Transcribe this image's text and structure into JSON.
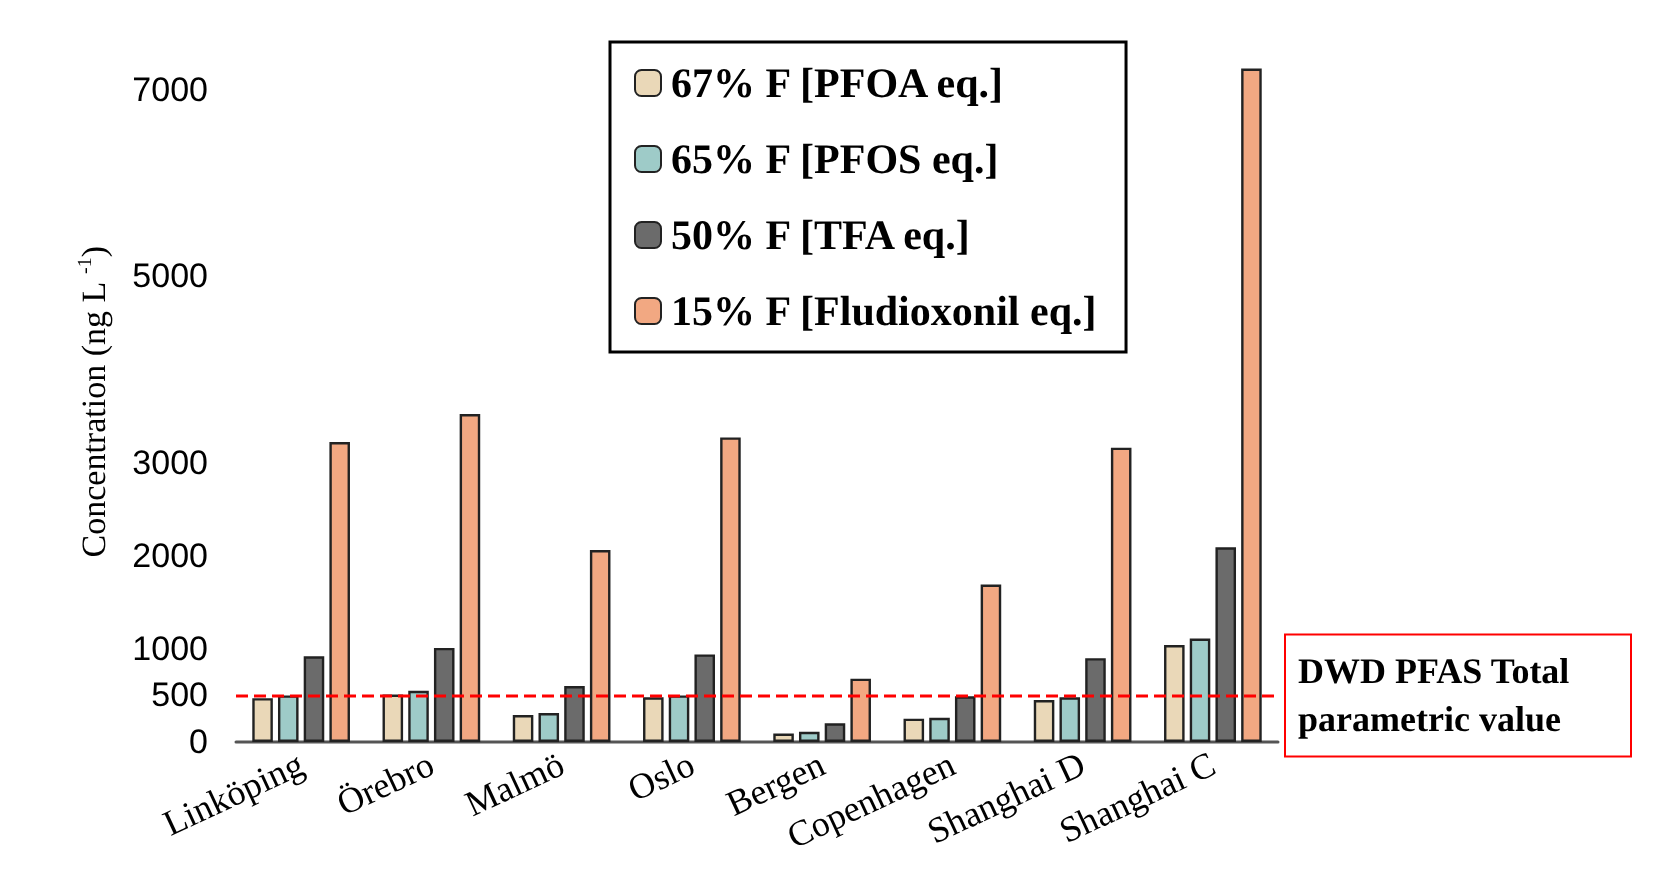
{
  "chart_data": {
    "type": "bar",
    "ylabel": "Concentration (ng L $^{-1}$)",
    "categories": [
      "Linköping",
      "Örebro",
      "Malmö",
      "Oslo",
      "Bergen",
      "Copenhagen",
      "Shanghai D",
      "Shanghai C"
    ],
    "series": [
      {
        "name": "67% F [PFOA eq.]",
        "color": "#ead8b8",
        "values": [
          470,
          510,
          290,
          480,
          90,
          250,
          450,
          1040
        ]
      },
      {
        "name": "65% F [PFOS eq.]",
        "color": "#9ecbc8",
        "values": [
          500,
          550,
          310,
          500,
          110,
          260,
          480,
          1110
        ]
      },
      {
        "name": "50% F [TFA eq.]",
        "color": "#6b6b6b",
        "values": [
          920,
          1010,
          600,
          940,
          200,
          490,
          900,
          2090
        ]
      },
      {
        "name": "15% F [Fludioxonil eq.]",
        "color": "#f2a882",
        "values": [
          3220,
          3520,
          2060,
          3270,
          680,
          1690,
          3160,
          7230
        ]
      }
    ],
    "ylim": [
      0,
      7300
    ],
    "yticks": [
      0,
      500,
      1000,
      2000,
      3000,
      5000,
      7000
    ],
    "grid": false,
    "legend": "top",
    "ref_lines": [
      {
        "axis": "y",
        "value": 500,
        "label": "DWD PFAS Total parametric value",
        "color": "#ff0000",
        "line_style": "dashed"
      }
    ]
  }
}
